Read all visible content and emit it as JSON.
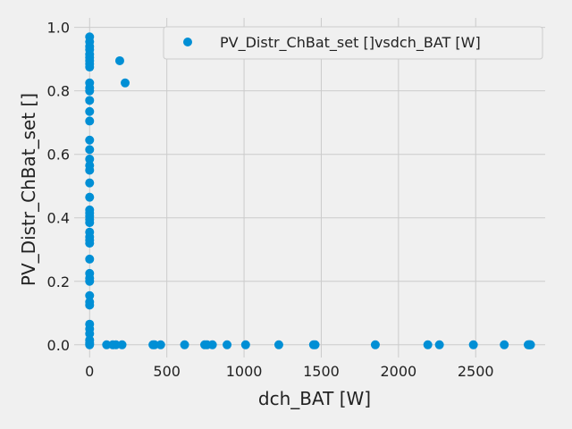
{
  "chart_data": {
    "type": "scatter",
    "title": "",
    "xlabel": "dch_BAT [W]",
    "ylabel": "PV_Distr_ChBat_set []",
    "xlim": [
      -100,
      2950
    ],
    "ylim": [
      -0.04,
      1.03
    ],
    "xticks": [
      0,
      500,
      1000,
      1500,
      2000,
      2500
    ],
    "yticks": [
      0.0,
      0.2,
      0.4,
      0.6,
      0.8,
      1.0
    ],
    "grid": true,
    "legend": {
      "placement": "top-right"
    },
    "series": [
      {
        "name": "PV_Distr_ChBat_set []vsdch_BAT [W]",
        "color": "#008fd5",
        "points": [
          [
            0,
            0.97
          ],
          [
            0,
            0.955
          ],
          [
            0,
            0.94
          ],
          [
            0,
            0.93
          ],
          [
            0,
            0.915
          ],
          [
            0,
            0.905
          ],
          [
            0,
            0.895
          ],
          [
            0,
            0.885
          ],
          [
            0,
            0.875
          ],
          [
            0,
            0.825
          ],
          [
            0,
            0.81
          ],
          [
            0,
            0.8
          ],
          [
            0,
            0.77
          ],
          [
            0,
            0.735
          ],
          [
            0,
            0.705
          ],
          [
            0,
            0.645
          ],
          [
            0,
            0.615
          ],
          [
            0,
            0.585
          ],
          [
            0,
            0.565
          ],
          [
            0,
            0.55
          ],
          [
            0,
            0.51
          ],
          [
            0,
            0.465
          ],
          [
            0,
            0.425
          ],
          [
            0,
            0.415
          ],
          [
            0,
            0.405
          ],
          [
            0,
            0.395
          ],
          [
            0,
            0.385
          ],
          [
            0,
            0.355
          ],
          [
            0,
            0.34
          ],
          [
            0,
            0.33
          ],
          [
            0,
            0.32
          ],
          [
            0,
            0.27
          ],
          [
            0,
            0.225
          ],
          [
            0,
            0.21
          ],
          [
            0,
            0.2
          ],
          [
            0,
            0.155
          ],
          [
            0,
            0.135
          ],
          [
            0,
            0.125
          ],
          [
            0,
            0.065
          ],
          [
            0,
            0.05
          ],
          [
            0,
            0.035
          ],
          [
            0,
            0.015
          ],
          [
            0,
            0.005
          ],
          [
            0,
            0.0
          ],
          [
            195,
            0.895
          ],
          [
            230,
            0.825
          ],
          [
            110,
            0.0
          ],
          [
            150,
            0.0
          ],
          [
            170,
            0.0
          ],
          [
            210,
            0.0
          ],
          [
            410,
            0.0
          ],
          [
            420,
            0.0
          ],
          [
            460,
            0.0
          ],
          [
            615,
            0.0
          ],
          [
            745,
            0.0
          ],
          [
            760,
            0.0
          ],
          [
            795,
            0.0
          ],
          [
            890,
            0.0
          ],
          [
            1010,
            0.0
          ],
          [
            1225,
            0.0
          ],
          [
            1450,
            0.0
          ],
          [
            1460,
            0.0
          ],
          [
            1850,
            0.0
          ],
          [
            2190,
            0.0
          ],
          [
            2265,
            0.0
          ],
          [
            2485,
            0.0
          ],
          [
            2685,
            0.0
          ],
          [
            2840,
            0.0
          ],
          [
            2845,
            0.0
          ],
          [
            2850,
            0.0
          ],
          [
            2855,
            0.0
          ]
        ]
      }
    ]
  }
}
